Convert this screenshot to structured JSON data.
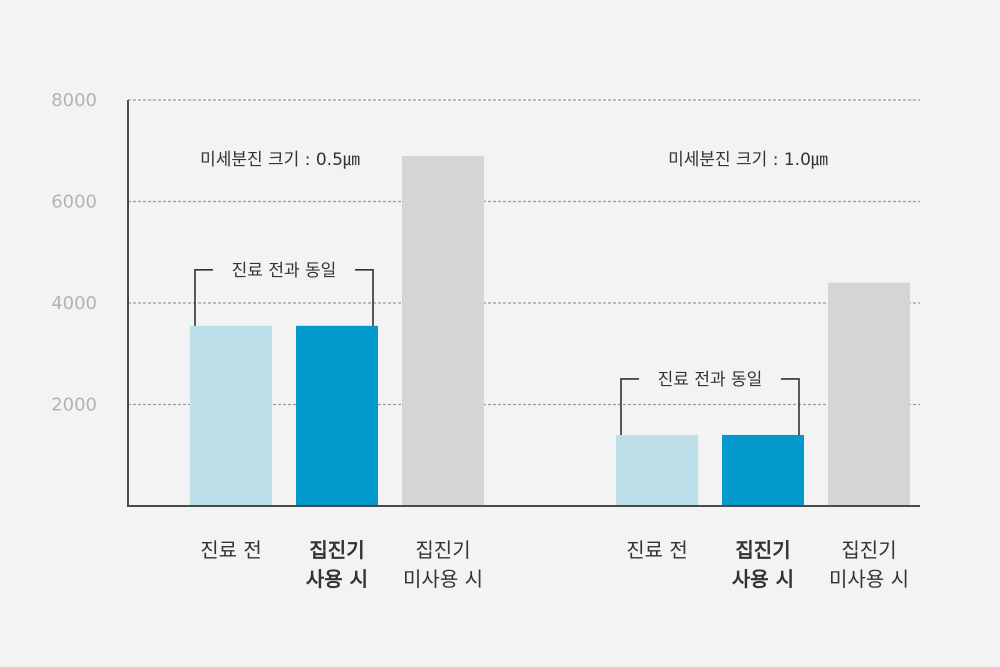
{
  "chart_data": {
    "type": "bar",
    "ylim": [
      0,
      8000
    ],
    "yticks": [
      "2000",
      "4000",
      "6000",
      "8000"
    ],
    "grid": true,
    "colors": {
      "before": "#bde0e8",
      "with_collector": "#0399cc",
      "without_collector": "#d5d5d5"
    },
    "groups": [
      {
        "title": "미세분진 크기 : 0.5㎛",
        "bracket_label": "진료 전과 동일",
        "bars": [
          {
            "label_lines": [
              "진료 전"
            ],
            "value": 3550,
            "kind": "before",
            "bold": false
          },
          {
            "label_lines": [
              "집진기",
              "사용 시"
            ],
            "value": 3550,
            "kind": "with_collector",
            "bold": true
          },
          {
            "label_lines": [
              "집진기",
              "미사용 시"
            ],
            "value": 6900,
            "kind": "without_collector",
            "bold": false
          }
        ]
      },
      {
        "title": "미세분진 크기 : 1.0㎛",
        "bracket_label": "진료 전과 동일",
        "bars": [
          {
            "label_lines": [
              "진료 전"
            ],
            "value": 1400,
            "kind": "before",
            "bold": false
          },
          {
            "label_lines": [
              "집진기",
              "사용 시"
            ],
            "value": 1400,
            "kind": "with_collector",
            "bold": true
          },
          {
            "label_lines": [
              "집진기",
              "미사용 시"
            ],
            "value": 4400,
            "kind": "without_collector",
            "bold": false
          }
        ]
      }
    ]
  }
}
